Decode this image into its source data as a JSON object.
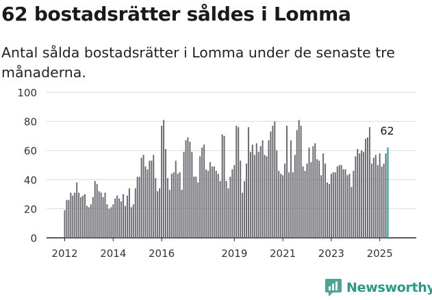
{
  "header": {
    "title": "62 bostadsrätter såldes i Lomma",
    "subtitle": "Antal sålda bostadsrätter i Lomma under de senaste tre månaderna."
  },
  "brand": {
    "name": "Newsworthy",
    "logo_icon": "newsworthy-logo-icon",
    "color": "#2a9a86"
  },
  "chart_data": {
    "type": "bar",
    "title": "62 bostadsrätter såldes i Lomma",
    "subtitle": "Antal sålda bostadsrätter i Lomma under de senaste tre månaderna.",
    "xlabel": "",
    "ylabel": "",
    "ylim": [
      0,
      100
    ],
    "yticks": [
      0,
      20,
      40,
      60,
      80,
      100
    ],
    "grid": true,
    "x_start": "2012-01",
    "x_frequency": "monthly",
    "xticks": [
      "2012",
      "2014",
      "2016",
      "2019",
      "2021",
      "2023",
      "2025"
    ],
    "bar_color": "#6b6a70",
    "highlight_color": "#1a9e8f",
    "highlight_label": "62",
    "values": [
      19,
      26,
      26,
      31,
      29,
      31,
      38,
      31,
      28,
      29,
      30,
      22,
      21,
      23,
      28,
      39,
      37,
      32,
      31,
      28,
      31,
      23,
      20,
      21,
      23,
      27,
      29,
      27,
      25,
      30,
      22,
      29,
      34,
      21,
      23,
      34,
      42,
      42,
      55,
      57,
      49,
      47,
      53,
      53,
      57,
      41,
      32,
      34,
      77,
      81,
      61,
      41,
      33,
      44,
      45,
      53,
      44,
      45,
      33,
      59,
      67,
      69,
      66,
      59,
      42,
      42,
      38,
      56,
      62,
      64,
      47,
      46,
      52,
      49,
      49,
      46,
      44,
      39,
      71,
      70,
      39,
      34,
      42,
      47,
      50,
      77,
      76,
      53,
      31,
      39,
      51,
      76,
      59,
      64,
      57,
      65,
      59,
      63,
      67,
      57,
      56,
      67,
      73,
      77,
      80,
      60,
      46,
      44,
      43,
      51,
      77,
      45,
      67,
      45,
      57,
      74,
      81,
      77,
      49,
      46,
      51,
      62,
      52,
      63,
      65,
      54,
      53,
      43,
      58,
      51,
      38,
      37,
      44,
      45,
      45,
      49,
      50,
      50,
      47,
      47,
      43,
      44,
      35,
      46,
      56,
      61,
      58,
      60,
      59,
      68,
      69,
      76,
      51,
      55,
      57,
      50,
      58,
      49,
      51,
      58,
      62
    ],
    "notes_on_last": "last bar highlighted"
  }
}
